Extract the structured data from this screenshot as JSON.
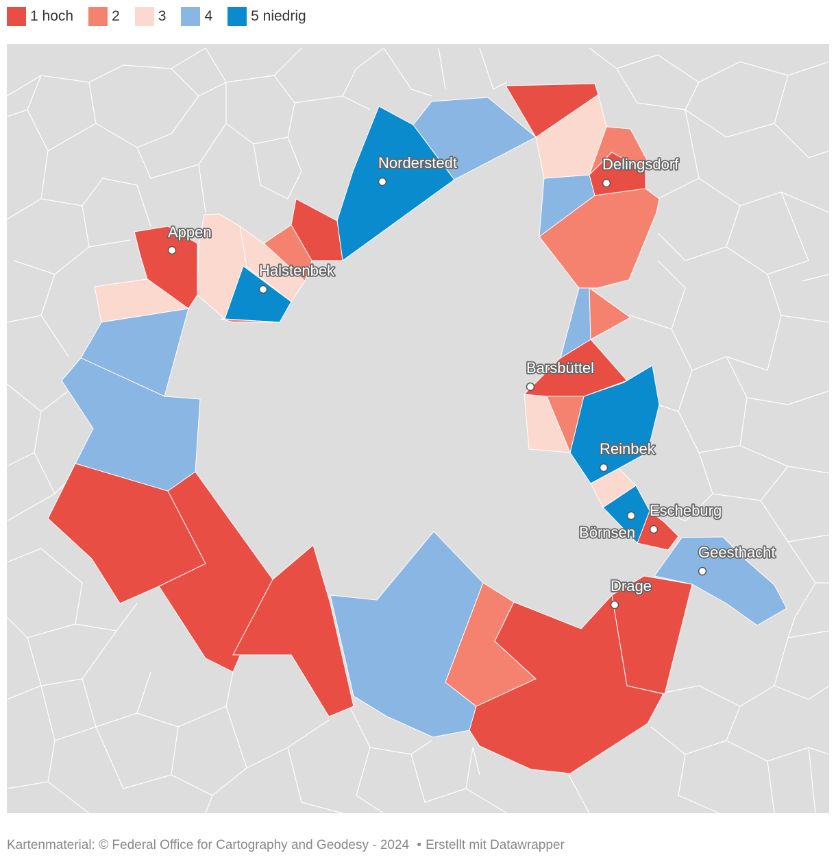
{
  "legend": {
    "items": [
      {
        "label": "1 hoch",
        "color": "#e94e45"
      },
      {
        "label": "2",
        "color": "#f4826f"
      },
      {
        "label": "3",
        "color": "#fbd9cf"
      },
      {
        "label": "4",
        "color": "#8ab6e3"
      },
      {
        "label": "5 niedrig",
        "color": "#0a8bcd"
      }
    ]
  },
  "map": {
    "background_color": "#dddddd",
    "border_color": "#ffffff",
    "cities": [
      {
        "name": "Norderstedt"
      },
      {
        "name": "Delingsdorf"
      },
      {
        "name": "Appen"
      },
      {
        "name": "Halstenbek"
      },
      {
        "name": "Barsbüttel"
      },
      {
        "name": "Reinbek"
      },
      {
        "name": "Escheburg"
      },
      {
        "name": "Börnsen"
      },
      {
        "name": "Geesthacht"
      },
      {
        "name": "Drage"
      }
    ]
  },
  "footer": {
    "source": "Kartenmaterial: © Federal Office for Cartography and Geodesy - 2024",
    "separator": "•",
    "credit": "Erstellt mit Datawrapper"
  }
}
